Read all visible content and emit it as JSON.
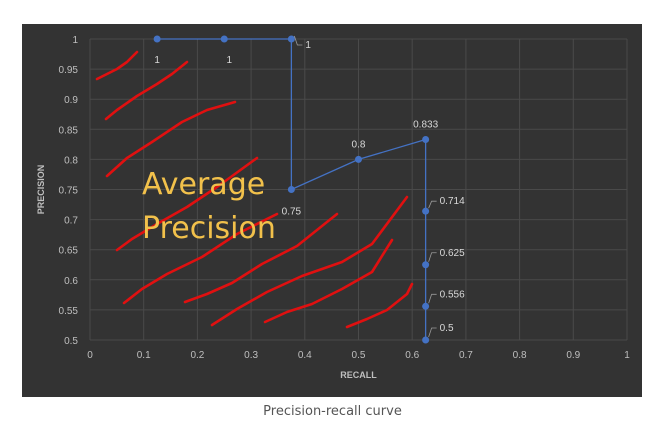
{
  "caption": "Precision-recall curve",
  "chart_data": {
    "type": "scatter",
    "xlabel": "RECALL",
    "ylabel": "PRECISION",
    "xlim": [
      0,
      1
    ],
    "ylim": [
      0.5,
      1
    ],
    "x_ticks": [
      "0",
      "0.1",
      "0.2",
      "0.3",
      "0.4",
      "0.5",
      "0.6",
      "0.7",
      "0.8",
      "0.9",
      "1"
    ],
    "y_ticks": [
      "0.5",
      "0.55",
      "0.6",
      "0.65",
      "0.7",
      "0.75",
      "0.8",
      "0.85",
      "0.9",
      "0.95",
      "1"
    ],
    "grid": true,
    "series": [
      {
        "x": [
          0.125,
          0.25,
          0.375,
          0.375,
          0.5,
          0.625,
          0.625,
          0.625,
          0.625,
          0.625
        ],
        "y": [
          1,
          1,
          1,
          0.75,
          0.8,
          0.833,
          0.714,
          0.625,
          0.556,
          0.5
        ],
        "labels": [
          "1",
          "1",
          "1",
          "0.75",
          "0.8",
          "0.833",
          "0.714",
          "0.625",
          "0.556",
          "0.5"
        ]
      }
    ],
    "annotation": {
      "lines": [
        "Average",
        "Precision"
      ]
    },
    "colors": {
      "background": "#333333",
      "grid": "#4a4a4a",
      "axis_text": "#bfbfbf",
      "series": "#4472c4",
      "point_label": "#d9d9d9",
      "annotation_text": "#f2c14b",
      "hatch": "#e01010"
    }
  }
}
